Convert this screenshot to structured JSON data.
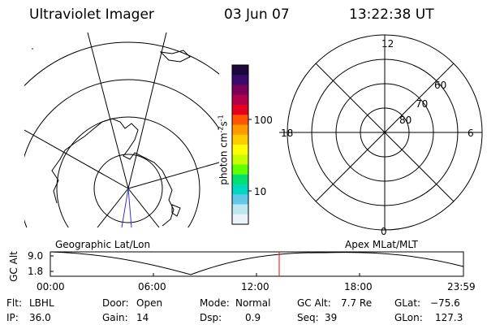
{
  "header": {
    "instrument": "Ultraviolet Imager",
    "date": "03 Jun 07",
    "time": "13:22:38 UT"
  },
  "colorbar": {
    "unit_label_main": "photon cm",
    "unit_sup1": "-2",
    "unit_mid": "s",
    "unit_sup2": "-1",
    "tick_100": "100",
    "tick_10": "10",
    "colors": [
      "#1a0a3a",
      "#3a0a6a",
      "#7a005a",
      "#b2004a",
      "#e6001e",
      "#ff5500",
      "#ff9a00",
      "#ffcc00",
      "#ffff00",
      "#c8ff00",
      "#60ff00",
      "#00e070",
      "#00d8c0",
      "#60c8e8",
      "#bfe7f2",
      "#e8f4f8"
    ]
  },
  "polar_plot": {
    "mlt_12": "12",
    "mlt_18": "18",
    "mlt_6": "6",
    "mlt_0": "0",
    "lat_60": "60",
    "lat_70": "70",
    "lat_80": "80"
  },
  "labels": {
    "geographic": "Geographic Lat/Lon",
    "apex": "Apex MLat/MLT"
  },
  "alt_plot": {
    "axis_label": "GC Alt",
    "y_max": "9.0",
    "y_min": "1.8",
    "x_ticks": [
      "00:00",
      "06:00",
      "12:00",
      "18:00",
      "23:59"
    ],
    "current_time_marker": "13:22"
  },
  "info": {
    "filter_label": "Flt:",
    "filter_value": "LBHL",
    "door_label": "Door:",
    "door_value": "Open",
    "mode_label": "Mode:",
    "mode_value": "Normal",
    "gcalt_label": "GC Alt:",
    "gcalt_value": "7.7 Re",
    "glat_label": "GLat:",
    "glat_value": "−75.6",
    "ip_label": "IP:",
    "ip_value": "36.0",
    "gain_label": "Gain:",
    "gain_value": "14",
    "dsp_label": "Dsp:",
    "dsp_value": "0.9",
    "seq_label": "Seq:",
    "seq_value": "39",
    "glon_label": "GLon:",
    "glon_value": "127.3"
  }
}
